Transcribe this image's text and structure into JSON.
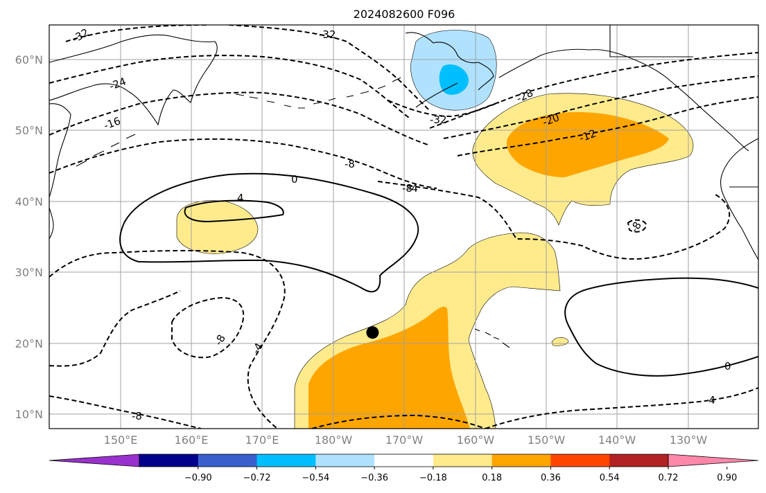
{
  "title": "2024082600 F096",
  "lat_labels": [
    "60°N",
    "50°N",
    "40°N",
    "30°N",
    "20°N",
    "10°N"
  ],
  "lon_labels": [
    "150°E",
    "160°E",
    "170°E",
    "180°W",
    "170°W",
    "160°W",
    "150°W",
    "140°W",
    "130°W"
  ],
  "colorbar": {
    "ticks": [
      "−0.90",
      "−0.72",
      "−0.54",
      "−0.36",
      "−0.18",
      "0.18",
      "0.36",
      "0.54",
      "0.72",
      "0.90"
    ],
    "colors": [
      "#9932cc",
      "#00008b",
      "#3a5fcd",
      "#00bfff",
      "#b0e2ff",
      "#ffffff",
      "#ffeb8c",
      "#ffa500",
      "#ff4500",
      "#b22222",
      "#ff88aa"
    ]
  },
  "contour_labels": [
    "-32",
    "-32",
    "-24",
    "-16",
    "-8",
    "-28",
    "-20",
    "-12",
    "-32",
    "-8",
    "-4",
    "0",
    "4",
    "-8",
    "-8",
    "-4",
    "-8",
    "0",
    "-4"
  ],
  "marker": {
    "lat": 21.5,
    "lon": -174.5
  }
}
